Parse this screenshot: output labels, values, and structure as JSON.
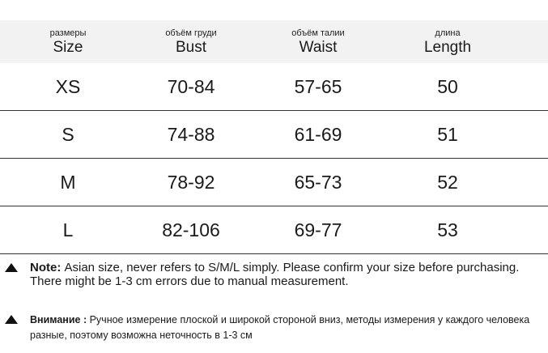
{
  "table": {
    "headers": [
      {
        "ru": "размеры",
        "en": "Size"
      },
      {
        "ru": "объём груди",
        "en": "Bust"
      },
      {
        "ru": "объём талии",
        "en": "Waist"
      },
      {
        "ru": "длина",
        "en": "Length"
      }
    ],
    "rows": [
      {
        "size": "XS",
        "bust": "70-84",
        "waist": "57-65",
        "length": "50"
      },
      {
        "size": "S",
        "bust": "74-88",
        "waist": "61-69",
        "length": "51"
      },
      {
        "size": "M",
        "bust": "78-92",
        "waist": "65-73",
        "length": "52"
      },
      {
        "size": "L",
        "bust": "82-106",
        "waist": "69-77",
        "length": "53"
      }
    ]
  },
  "notes": {
    "en": {
      "label": "Note:",
      "text": "Asian size, never refers to S/M/L simply. Please confirm your size before purchasing. There might be 1-3 cm errors due to manual measurement."
    },
    "ru": {
      "label": "Внимание :",
      "text": "Ручное измерение плоской и широкой стороной вниз, методы измерения у каждого человека разные, поэтому возможна неточность в 1-3 см"
    }
  }
}
